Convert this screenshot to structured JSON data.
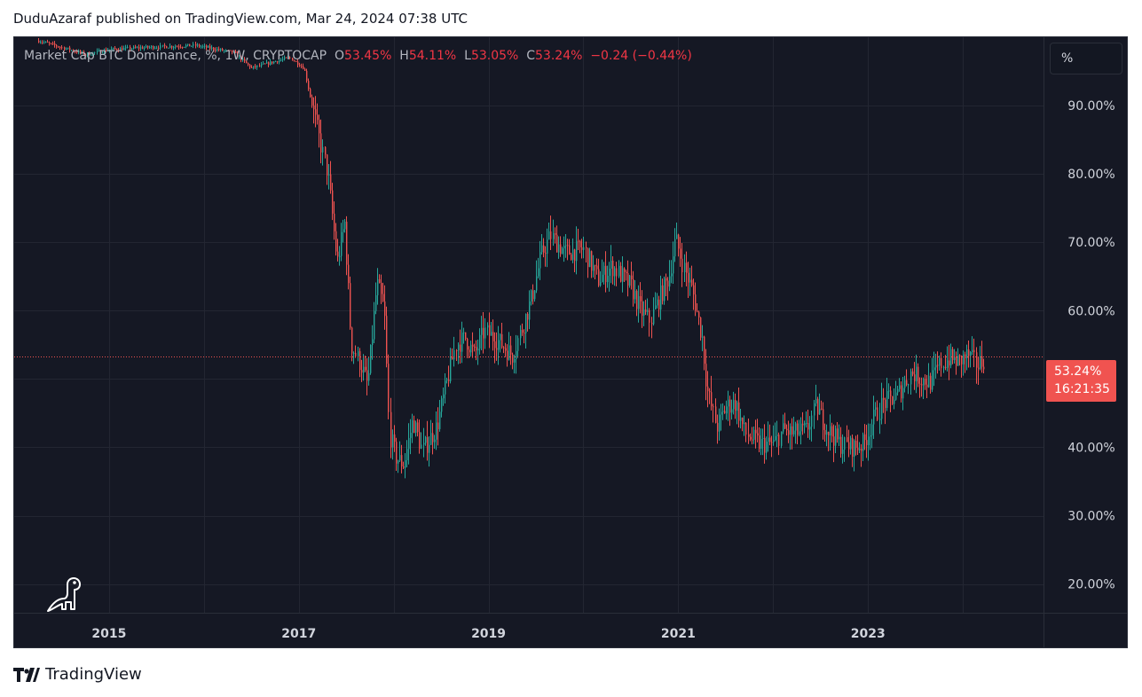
{
  "published_line": "DuduAzaraf published on TradingView.com, Mar 24, 2024 07:38 UTC",
  "legend": {
    "symbol": "Market Cap BTC Dominance, %, 1W, CRYPTOCAP",
    "open_label": "O",
    "open": "53.45%",
    "high_label": "H",
    "high": "54.11%",
    "low_label": "L",
    "low": "53.05%",
    "close_label": "C",
    "close": "53.24%",
    "change": "−0.24 (−0.44%)"
  },
  "unit_button": "%",
  "last_price": {
    "value": "53.24%",
    "countdown": "16:21:35",
    "numeric": 53.24
  },
  "footer_brand": "TradingView",
  "colors": {
    "up": "#26a69a",
    "down": "#ef5350",
    "background": "#151824",
    "grid": "#232632",
    "last_price": "#f05350"
  },
  "chart_data": {
    "type": "candlestick",
    "interval": "1W",
    "y_unit": "%",
    "ylim": [
      15.8,
      100
    ],
    "xlim": [
      2014.0,
      2024.85
    ],
    "grid": true,
    "y_ticks": [
      {
        "value": 20,
        "label": "20.00%"
      },
      {
        "value": 30,
        "label": "30.00%"
      },
      {
        "value": 40,
        "label": "40.00%"
      },
      {
        "value": 50,
        "label": ""
      },
      {
        "value": 60,
        "label": "60.00%"
      },
      {
        "value": 70,
        "label": "70.00%"
      },
      {
        "value": 80,
        "label": "80.00%"
      },
      {
        "value": 90,
        "label": "90.00%"
      }
    ],
    "x_ticks": [
      {
        "value": 2015,
        "label": "2015"
      },
      {
        "value": 2017,
        "label": "2017"
      },
      {
        "value": 2019,
        "label": "2019"
      },
      {
        "value": 2021,
        "label": "2021"
      },
      {
        "value": 2023,
        "label": "2023"
      }
    ],
    "x_grid_extra": [
      2016,
      2018,
      2020,
      2022,
      2024
    ],
    "close_series": [
      [
        2014.25,
        99.5
      ],
      [
        2014.5,
        98.5
      ],
      [
        2014.75,
        97.5
      ],
      [
        2015.0,
        98.2
      ],
      [
        2015.5,
        98.6
      ],
      [
        2015.9,
        98.8
      ],
      [
        2016.3,
        97.8
      ],
      [
        2016.5,
        95.5
      ],
      [
        2016.75,
        96.5
      ],
      [
        2016.9,
        97.0
      ],
      [
        2017.05,
        95.5
      ],
      [
        2017.2,
        86.0
      ],
      [
        2017.3,
        80.0
      ],
      [
        2017.4,
        67.0
      ],
      [
        2017.48,
        73.0
      ],
      [
        2017.55,
        55.0
      ],
      [
        2017.65,
        52.0
      ],
      [
        2017.72,
        49.0
      ],
      [
        2017.82,
        64.0
      ],
      [
        2017.9,
        60.0
      ],
      [
        2017.95,
        42.0
      ],
      [
        2018.02,
        38.5
      ],
      [
        2018.1,
        37.5
      ],
      [
        2018.2,
        44.0
      ],
      [
        2018.3,
        39.5
      ],
      [
        2018.45,
        43.0
      ],
      [
        2018.55,
        49.0
      ],
      [
        2018.65,
        55.0
      ],
      [
        2018.75,
        56.0
      ],
      [
        2018.85,
        53.5
      ],
      [
        2018.95,
        57.0
      ],
      [
        2019.1,
        55.5
      ],
      [
        2019.25,
        53.5
      ],
      [
        2019.35,
        57.5
      ],
      [
        2019.45,
        62.0
      ],
      [
        2019.55,
        68.0
      ],
      [
        2019.65,
        71.0
      ],
      [
        2019.8,
        68.5
      ],
      [
        2020.0,
        69.0
      ],
      [
        2020.15,
        64.5
      ],
      [
        2020.3,
        66.5
      ],
      [
        2020.5,
        63.5
      ],
      [
        2020.6,
        60.0
      ],
      [
        2020.7,
        58.5
      ],
      [
        2020.8,
        62.0
      ],
      [
        2020.9,
        65.0
      ],
      [
        2020.97,
        70.5
      ],
      [
        2021.05,
        66.5
      ],
      [
        2021.15,
        62.5
      ],
      [
        2021.25,
        56.0
      ],
      [
        2021.3,
        48.5
      ],
      [
        2021.4,
        43.0
      ],
      [
        2021.5,
        46.0
      ],
      [
        2021.6,
        46.5
      ],
      [
        2021.7,
        42.0
      ],
      [
        2021.85,
        40.5
      ],
      [
        2022.0,
        40.5
      ],
      [
        2022.1,
        42.5
      ],
      [
        2022.2,
        42.0
      ],
      [
        2022.35,
        42.5
      ],
      [
        2022.45,
        46.0
      ],
      [
        2022.55,
        43.0
      ],
      [
        2022.7,
        40.5
      ],
      [
        2022.85,
        40.0
      ],
      [
        2022.95,
        40.5
      ],
      [
        2023.05,
        44.0
      ],
      [
        2023.15,
        46.5
      ],
      [
        2023.3,
        47.5
      ],
      [
        2023.45,
        51.0
      ],
      [
        2023.55,
        50.0
      ],
      [
        2023.65,
        49.5
      ],
      [
        2023.75,
        52.0
      ],
      [
        2023.85,
        53.0
      ],
      [
        2023.95,
        52.5
      ],
      [
        2024.05,
        53.5
      ],
      [
        2024.15,
        52.0
      ],
      [
        2024.23,
        53.2
      ]
    ]
  }
}
